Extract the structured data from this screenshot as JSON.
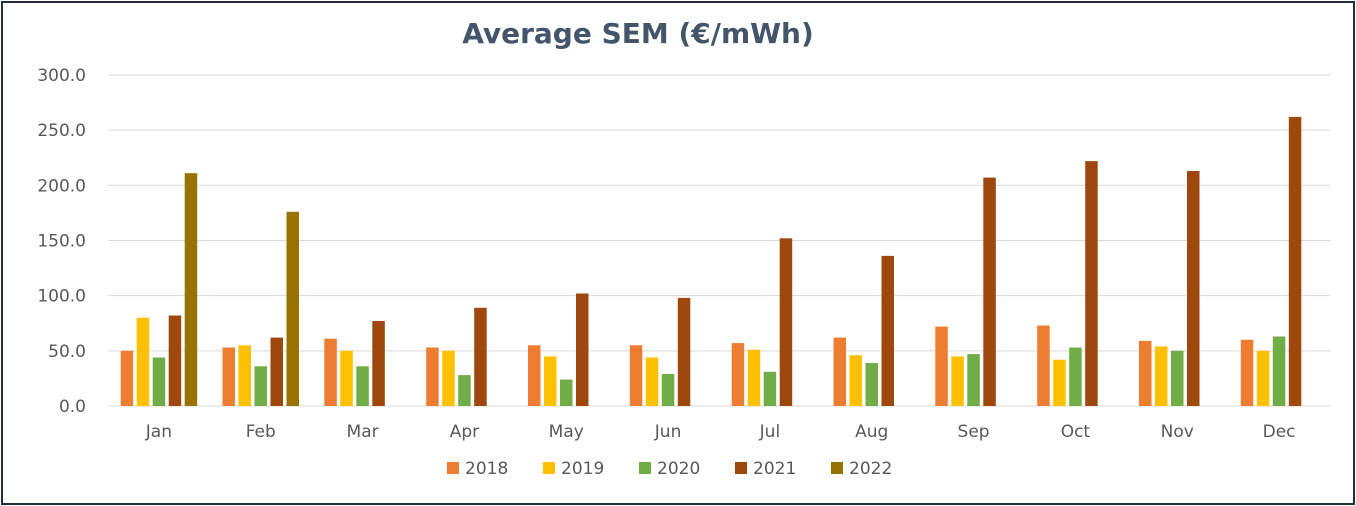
{
  "chart_data": {
    "type": "bar",
    "title": "Average SEM (€/mWh)",
    "xlabel": "",
    "ylabel": "",
    "ylim": [
      0,
      300
    ],
    "yticks": [
      "0.0",
      "50.0",
      "100.0",
      "150.0",
      "200.0",
      "250.0",
      "300.0"
    ],
    "grid": true,
    "legend_position": "bottom",
    "categories": [
      "Jan",
      "Feb",
      "Mar",
      "Apr",
      "May",
      "Jun",
      "Jul",
      "Aug",
      "Sep",
      "Oct",
      "Nov",
      "Dec"
    ],
    "series": [
      {
        "name": "2018",
        "color": "#ed7d31",
        "values": [
          50,
          53,
          61,
          53,
          55,
          55,
          57,
          62,
          72,
          73,
          59,
          60
        ]
      },
      {
        "name": "2019",
        "color": "#ffc000",
        "values": [
          80,
          55,
          50,
          50,
          45,
          44,
          51,
          46,
          45,
          42,
          54,
          50
        ]
      },
      {
        "name": "2020",
        "color": "#70ad47",
        "values": [
          44,
          36,
          36,
          28,
          24,
          29,
          31,
          39,
          47,
          53,
          50,
          63
        ]
      },
      {
        "name": "2021",
        "color": "#9e480e",
        "values": [
          82,
          62,
          77,
          89,
          102,
          98,
          152,
          136,
          207,
          222,
          213,
          262
        ]
      },
      {
        "name": "2022",
        "color": "#997300",
        "values": [
          211,
          176,
          null,
          null,
          null,
          null,
          null,
          null,
          null,
          null,
          null,
          null
        ]
      }
    ]
  }
}
